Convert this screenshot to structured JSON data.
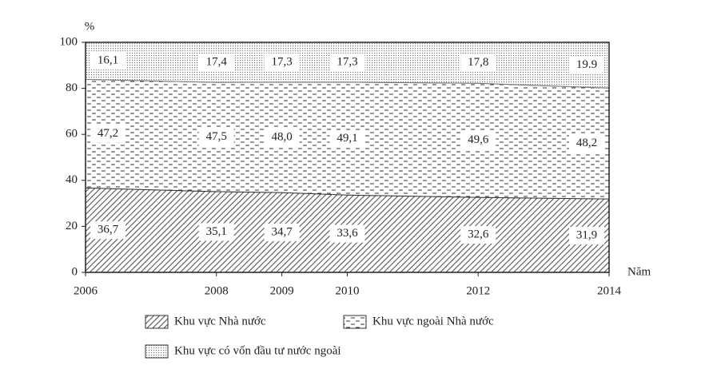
{
  "chart_data": {
    "type": "stacked_area",
    "y_label": "%",
    "x_label": "Năm",
    "x": [
      2006,
      2008,
      2009,
      2010,
      2012,
      2014
    ],
    "xlim": [
      2006,
      2014
    ],
    "xticks": [
      2006,
      2008,
      2009,
      2010,
      2012,
      2014
    ],
    "ylim": [
      0,
      100
    ],
    "yticks": [
      0,
      20,
      40,
      60,
      80,
      100
    ],
    "grid": false,
    "series": [
      {
        "name": "Khu vực Nhà nước",
        "color": "#555555",
        "values": [
          36.7,
          35.1,
          34.7,
          33.6,
          32.6,
          31.9
        ],
        "value_labels": [
          "36,7",
          "35,1",
          "34,7",
          "33,6",
          "32,6",
          "31,9"
        ]
      },
      {
        "name": "Khu vực ngoài Nhà nước",
        "color": "#333333",
        "values": [
          47.2,
          47.5,
          48.0,
          49.1,
          49.6,
          48.2
        ],
        "value_labels": [
          "47,2",
          "47,5",
          "48,0",
          "49,1",
          "49,6",
          "48,2"
        ]
      },
      {
        "name": "Khu vực có vốn đầu tư nước ngoài",
        "color": "#777777",
        "values": [
          16.1,
          17.4,
          17.3,
          17.3,
          17.8,
          19.9
        ],
        "value_labels": [
          "16,1",
          "17,4",
          "17,3",
          "17,3",
          "17,8",
          "19.9"
        ]
      }
    ]
  }
}
